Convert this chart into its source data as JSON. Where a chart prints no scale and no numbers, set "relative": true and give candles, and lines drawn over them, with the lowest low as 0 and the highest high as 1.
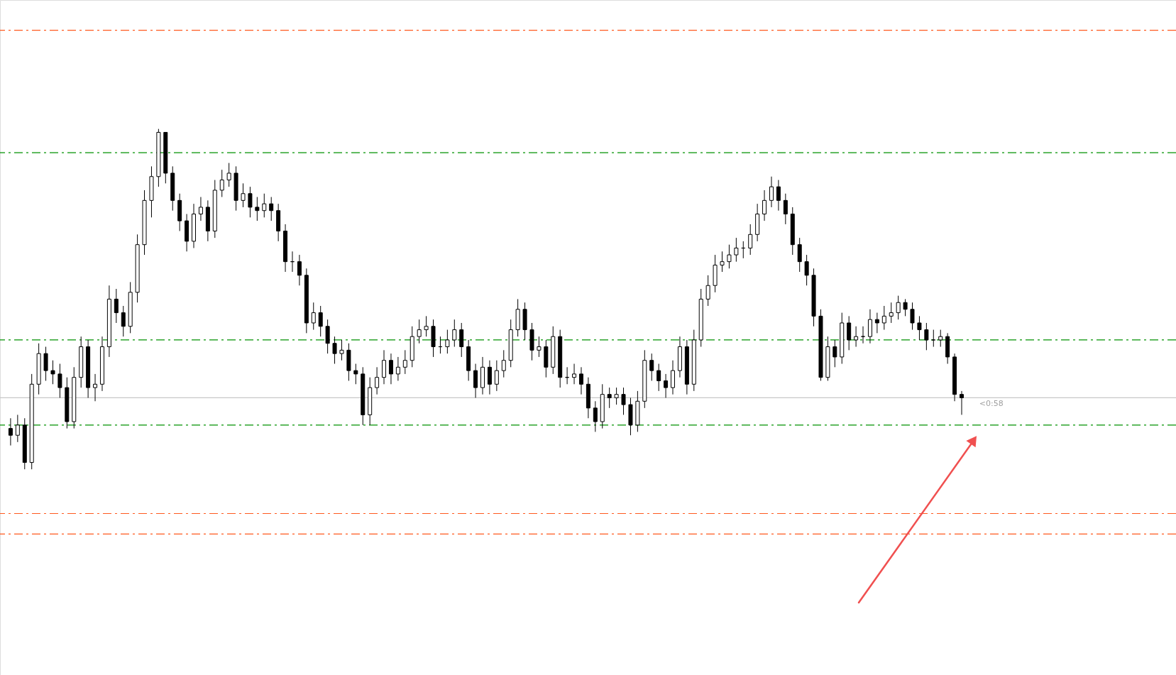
{
  "chart_data": {
    "type": "candlestick",
    "relative": true,
    "categories": [
      null,
      null,
      null,
      null,
      null,
      null,
      null,
      null,
      null,
      null,
      null,
      null,
      null,
      null,
      null,
      null,
      null,
      null,
      null,
      null,
      null,
      null,
      null,
      null,
      null,
      null,
      null,
      null,
      null,
      null,
      null,
      null,
      null,
      null,
      null,
      null,
      null,
      null,
      null,
      null,
      null,
      null,
      null,
      null,
      null,
      null,
      null,
      null,
      null,
      null,
      null,
      null,
      null,
      null,
      null,
      null,
      null,
      null,
      null,
      null,
      null,
      null,
      null,
      null,
      null,
      null,
      null,
      null,
      null,
      null,
      null,
      null,
      null,
      null,
      null,
      null,
      null,
      null,
      null,
      null,
      null,
      null,
      null,
      null,
      null,
      null,
      null,
      null,
      null,
      null,
      null,
      null,
      null,
      null,
      null,
      null,
      null,
      null,
      null,
      null,
      null,
      null,
      null,
      null,
      null,
      null,
      null,
      null,
      null,
      null,
      null,
      null,
      null,
      null,
      null,
      null,
      null,
      null,
      null,
      null,
      null,
      null,
      null,
      null,
      null,
      null,
      null,
      null,
      null,
      null,
      null,
      null,
      null,
      null,
      null,
      null
    ],
    "ohlc": [
      [
        0.12,
        0.15,
        0.07,
        0.1
      ],
      [
        0.1,
        0.16,
        0.08,
        0.13
      ],
      [
        0.13,
        0.15,
        0.0,
        0.02
      ],
      [
        0.02,
        0.28,
        0.0,
        0.25
      ],
      [
        0.25,
        0.37,
        0.22,
        0.34
      ],
      [
        0.34,
        0.36,
        0.26,
        0.29
      ],
      [
        0.29,
        0.32,
        0.25,
        0.28
      ],
      [
        0.28,
        0.31,
        0.21,
        0.24
      ],
      [
        0.24,
        0.27,
        0.12,
        0.14
      ],
      [
        0.14,
        0.3,
        0.12,
        0.27
      ],
      [
        0.27,
        0.39,
        0.24,
        0.36
      ],
      [
        0.36,
        0.38,
        0.21,
        0.24
      ],
      [
        0.24,
        0.28,
        0.2,
        0.25
      ],
      [
        0.25,
        0.39,
        0.23,
        0.36
      ],
      [
        0.36,
        0.54,
        0.33,
        0.5
      ],
      [
        0.5,
        0.53,
        0.43,
        0.46
      ],
      [
        0.46,
        0.48,
        0.39,
        0.42
      ],
      [
        0.42,
        0.55,
        0.4,
        0.52
      ],
      [
        0.52,
        0.69,
        0.49,
        0.66
      ],
      [
        0.66,
        0.82,
        0.63,
        0.79
      ],
      [
        0.79,
        0.89,
        0.74,
        0.86
      ],
      [
        0.86,
        1.0,
        0.83,
        0.99
      ],
      [
        0.99,
        0.99,
        0.84,
        0.87
      ],
      [
        0.87,
        0.89,
        0.76,
        0.79
      ],
      [
        0.79,
        0.81,
        0.7,
        0.73
      ],
      [
        0.73,
        0.75,
        0.64,
        0.67
      ],
      [
        0.67,
        0.78,
        0.65,
        0.75
      ],
      [
        0.75,
        0.8,
        0.73,
        0.77
      ],
      [
        0.77,
        0.79,
        0.67,
        0.7
      ],
      [
        0.7,
        0.85,
        0.68,
        0.82
      ],
      [
        0.82,
        0.88,
        0.8,
        0.85
      ],
      [
        0.85,
        0.9,
        0.83,
        0.87
      ],
      [
        0.87,
        0.89,
        0.76,
        0.79
      ],
      [
        0.79,
        0.84,
        0.77,
        0.81
      ],
      [
        0.81,
        0.83,
        0.74,
        0.77
      ],
      [
        0.77,
        0.8,
        0.73,
        0.76
      ],
      [
        0.76,
        0.81,
        0.74,
        0.78
      ],
      [
        0.78,
        0.8,
        0.73,
        0.76
      ],
      [
        0.76,
        0.78,
        0.67,
        0.7
      ],
      [
        0.7,
        0.72,
        0.58,
        0.61
      ],
      [
        0.61,
        0.64,
        0.58,
        0.61
      ],
      [
        0.61,
        0.63,
        0.54,
        0.57
      ],
      [
        0.57,
        0.59,
        0.4,
        0.43
      ],
      [
        0.43,
        0.49,
        0.41,
        0.46
      ],
      [
        0.46,
        0.48,
        0.39,
        0.42
      ],
      [
        0.42,
        0.44,
        0.34,
        0.37
      ],
      [
        0.37,
        0.39,
        0.31,
        0.34
      ],
      [
        0.34,
        0.38,
        0.32,
        0.35
      ],
      [
        0.35,
        0.37,
        0.26,
        0.29
      ],
      [
        0.29,
        0.31,
        0.25,
        0.28
      ],
      [
        0.28,
        0.3,
        0.13,
        0.16
      ],
      [
        0.16,
        0.27,
        0.13,
        0.24
      ],
      [
        0.24,
        0.3,
        0.22,
        0.27
      ],
      [
        0.27,
        0.35,
        0.25,
        0.32
      ],
      [
        0.32,
        0.34,
        0.25,
        0.28
      ],
      [
        0.28,
        0.33,
        0.26,
        0.3
      ],
      [
        0.3,
        0.35,
        0.28,
        0.32
      ],
      [
        0.32,
        0.42,
        0.3,
        0.39
      ],
      [
        0.39,
        0.44,
        0.37,
        0.41
      ],
      [
        0.41,
        0.45,
        0.39,
        0.42
      ],
      [
        0.42,
        0.44,
        0.33,
        0.36
      ],
      [
        0.36,
        0.39,
        0.34,
        0.36
      ],
      [
        0.36,
        0.41,
        0.34,
        0.38
      ],
      [
        0.38,
        0.44,
        0.36,
        0.41
      ],
      [
        0.41,
        0.43,
        0.33,
        0.36
      ],
      [
        0.36,
        0.38,
        0.26,
        0.29
      ],
      [
        0.29,
        0.31,
        0.21,
        0.24
      ],
      [
        0.24,
        0.33,
        0.22,
        0.3
      ],
      [
        0.3,
        0.32,
        0.22,
        0.25
      ],
      [
        0.25,
        0.32,
        0.23,
        0.29
      ],
      [
        0.29,
        0.35,
        0.27,
        0.32
      ],
      [
        0.32,
        0.44,
        0.3,
        0.41
      ],
      [
        0.41,
        0.5,
        0.39,
        0.47
      ],
      [
        0.47,
        0.49,
        0.38,
        0.41
      ],
      [
        0.41,
        0.43,
        0.32,
        0.35
      ],
      [
        0.35,
        0.39,
        0.33,
        0.36
      ],
      [
        0.36,
        0.38,
        0.27,
        0.3
      ],
      [
        0.3,
        0.42,
        0.28,
        0.39
      ],
      [
        0.39,
        0.41,
        0.24,
        0.27
      ],
      [
        0.27,
        0.3,
        0.25,
        0.27
      ],
      [
        0.27,
        0.31,
        0.25,
        0.28
      ],
      [
        0.28,
        0.3,
        0.22,
        0.25
      ],
      [
        0.25,
        0.27,
        0.15,
        0.18
      ],
      [
        0.18,
        0.2,
        0.11,
        0.14
      ],
      [
        0.14,
        0.25,
        0.12,
        0.22
      ],
      [
        0.22,
        0.24,
        0.18,
        0.21
      ],
      [
        0.21,
        0.24,
        0.19,
        0.22
      ],
      [
        0.22,
        0.24,
        0.16,
        0.19
      ],
      [
        0.19,
        0.21,
        0.1,
        0.13
      ],
      [
        0.13,
        0.23,
        0.11,
        0.2
      ],
      [
        0.2,
        0.35,
        0.18,
        0.32
      ],
      [
        0.32,
        0.34,
        0.26,
        0.29
      ],
      [
        0.29,
        0.31,
        0.23,
        0.26
      ],
      [
        0.26,
        0.28,
        0.21,
        0.24
      ],
      [
        0.24,
        0.32,
        0.22,
        0.29
      ],
      [
        0.29,
        0.39,
        0.27,
        0.36
      ],
      [
        0.36,
        0.38,
        0.22,
        0.25
      ],
      [
        0.25,
        0.41,
        0.23,
        0.38
      ],
      [
        0.38,
        0.53,
        0.36,
        0.5
      ],
      [
        0.5,
        0.57,
        0.48,
        0.54
      ],
      [
        0.54,
        0.63,
        0.52,
        0.6
      ],
      [
        0.6,
        0.64,
        0.58,
        0.61
      ],
      [
        0.61,
        0.66,
        0.59,
        0.63
      ],
      [
        0.63,
        0.68,
        0.61,
        0.65
      ],
      [
        0.65,
        0.67,
        0.62,
        0.65
      ],
      [
        0.65,
        0.72,
        0.63,
        0.69
      ],
      [
        0.69,
        0.78,
        0.67,
        0.75
      ],
      [
        0.75,
        0.82,
        0.73,
        0.79
      ],
      [
        0.79,
        0.86,
        0.77,
        0.83
      ],
      [
        0.83,
        0.85,
        0.76,
        0.79
      ],
      [
        0.79,
        0.81,
        0.72,
        0.75
      ],
      [
        0.75,
        0.77,
        0.63,
        0.66
      ],
      [
        0.66,
        0.68,
        0.58,
        0.61
      ],
      [
        0.61,
        0.63,
        0.54,
        0.57
      ],
      [
        0.57,
        0.59,
        0.42,
        0.45
      ],
      [
        0.45,
        0.47,
        0.26,
        0.27
      ],
      [
        0.27,
        0.39,
        0.26,
        0.36
      ],
      [
        0.36,
        0.38,
        0.3,
        0.33
      ],
      [
        0.33,
        0.46,
        0.31,
        0.43
      ],
      [
        0.43,
        0.45,
        0.35,
        0.38
      ],
      [
        0.38,
        0.42,
        0.36,
        0.39
      ],
      [
        0.39,
        0.42,
        0.37,
        0.39
      ],
      [
        0.39,
        0.47,
        0.37,
        0.44
      ],
      [
        0.44,
        0.46,
        0.4,
        0.43
      ],
      [
        0.43,
        0.48,
        0.41,
        0.45
      ],
      [
        0.45,
        0.49,
        0.43,
        0.46
      ],
      [
        0.46,
        0.51,
        0.44,
        0.49
      ],
      [
        0.49,
        0.5,
        0.45,
        0.47
      ],
      [
        0.47,
        0.49,
        0.41,
        0.43
      ],
      [
        0.43,
        0.45,
        0.38,
        0.41
      ],
      [
        0.41,
        0.43,
        0.35,
        0.38
      ],
      [
        0.38,
        0.41,
        0.36,
        0.38
      ],
      [
        0.38,
        0.41,
        0.36,
        0.39
      ],
      [
        0.39,
        0.4,
        0.31,
        0.33
      ],
      [
        0.33,
        0.34,
        0.2,
        0.22
      ],
      [
        0.22,
        0.23,
        0.16,
        0.21
      ]
    ],
    "ref_lines": [
      {
        "axis": "y",
        "value": 1.29,
        "color": "#ff5a1e",
        "line_style": "dashed"
      },
      {
        "axis": "y",
        "value": 0.93,
        "color": "#009100",
        "line_style": "dashed"
      },
      {
        "axis": "y",
        "value": 0.38,
        "color": "#009100",
        "line_style": "dashed"
      },
      {
        "axis": "y",
        "value": 0.21,
        "color": "#c8c8c8",
        "line_style": "solid"
      },
      {
        "axis": "y",
        "value": 0.13,
        "color": "#009100",
        "line_style": "dashed"
      },
      {
        "axis": "y",
        "value": -0.13,
        "color": "#ff5a1e",
        "line_style": "dashed"
      },
      {
        "axis": "y",
        "value": -0.19,
        "color": "#ff5a1e",
        "line_style": "dashed"
      }
    ],
    "annotations": [
      "<0:58"
    ]
  }
}
